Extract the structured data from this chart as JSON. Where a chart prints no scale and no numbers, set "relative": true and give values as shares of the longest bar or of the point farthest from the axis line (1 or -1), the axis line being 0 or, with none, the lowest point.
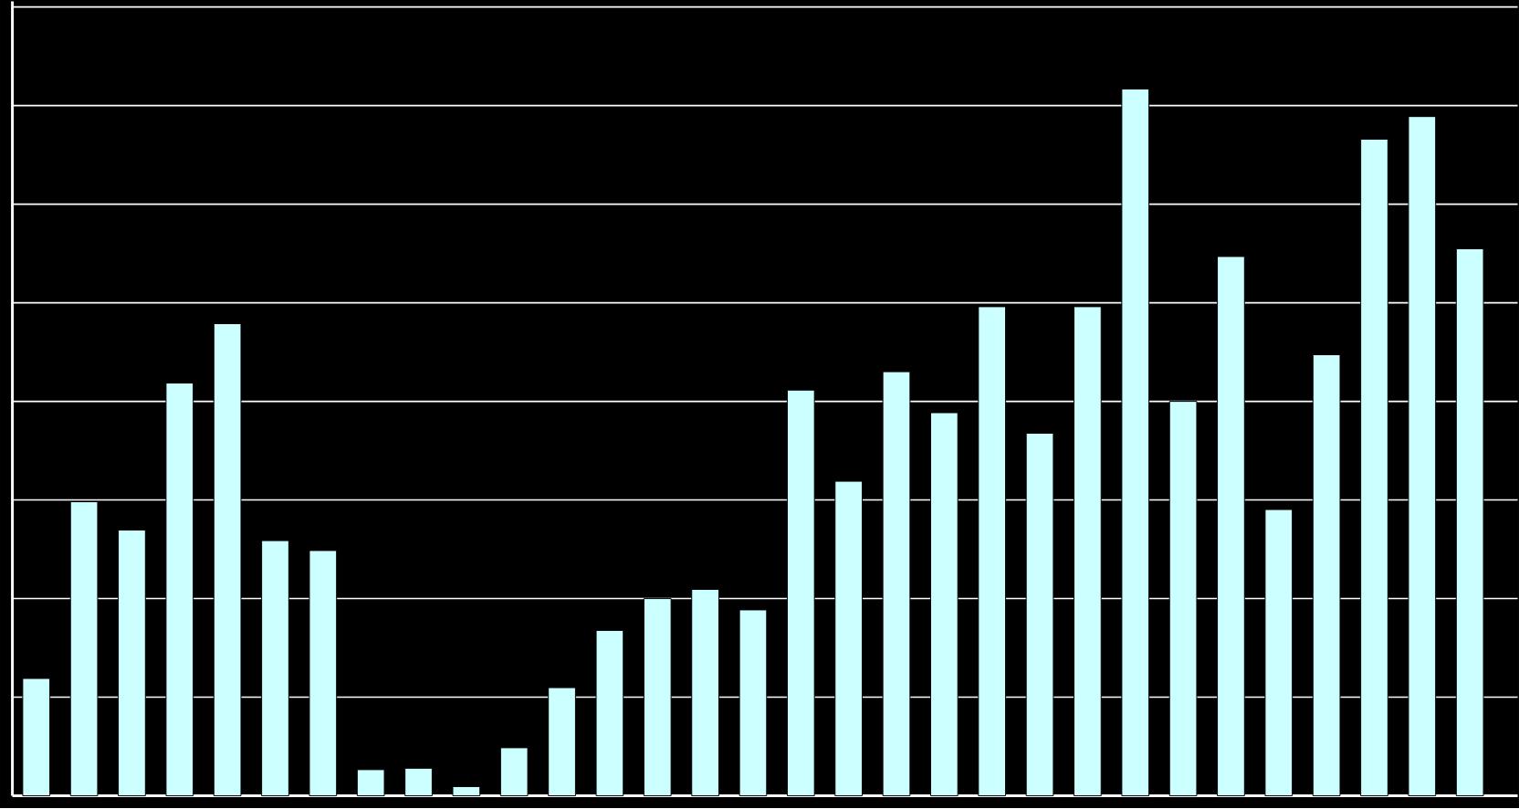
{
  "chart_data": {
    "type": "bar",
    "relative": true,
    "grid": true,
    "color": "#ccffff",
    "categories": [
      null,
      null,
      null,
      null,
      null,
      null,
      null,
      null,
      null,
      null,
      null,
      null,
      null,
      null,
      null,
      null,
      null,
      null,
      null,
      null,
      null,
      null,
      null,
      null,
      null,
      null,
      null,
      null,
      null,
      null,
      null
    ],
    "values": [
      0.166,
      0.416,
      0.376,
      0.584,
      0.668,
      0.361,
      0.347,
      0.037,
      0.039,
      0.013,
      0.068,
      0.153,
      0.234,
      0.279,
      0.292,
      0.263,
      0.574,
      0.445,
      0.6,
      0.542,
      0.692,
      0.513,
      0.692,
      1,
      0.558,
      0.763,
      0.405,
      0.624,
      0.929,
      0.961,
      0.774
    ]
  }
}
